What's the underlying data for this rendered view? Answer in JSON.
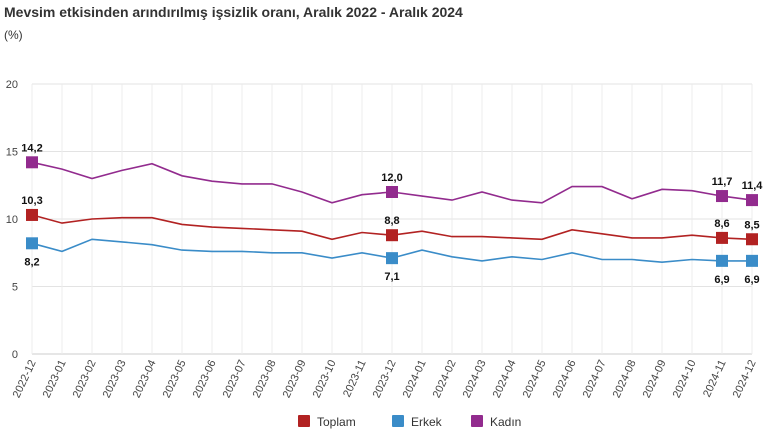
{
  "header": {
    "title": "Mevsim etkisinden arındırılmış işsizlik oranı, Aralık 2022 - Aralık 2024",
    "unit": "(%)"
  },
  "chart_data": {
    "type": "line",
    "title": "Mevsim etkisinden arındırılmış işsizlik oranı, Aralık 2022 - Aralık 2024",
    "ylabel": "(%)",
    "xlabel": "",
    "ylim": [
      0,
      20
    ],
    "yticks": [
      0,
      5,
      10,
      15,
      20
    ],
    "grid": true,
    "legend_position": "bottom",
    "x": [
      "2022-12",
      "2023-01",
      "2023-02",
      "2023-03",
      "2023-04",
      "2023-05",
      "2023-06",
      "2023-07",
      "2023-08",
      "2023-09",
      "2023-10",
      "2023-11",
      "2023-12",
      "2024-01",
      "2024-02",
      "2024-03",
      "2024-04",
      "2024-05",
      "2024-06",
      "2024-07",
      "2024-08",
      "2024-09",
      "2024-10",
      "2024-11",
      "2024-12"
    ],
    "series": [
      {
        "name": "Toplam",
        "color": "#b22222",
        "values": [
          10.3,
          9.7,
          10.0,
          10.1,
          10.1,
          9.6,
          9.4,
          9.3,
          9.2,
          9.1,
          8.5,
          9.0,
          8.8,
          9.1,
          8.7,
          8.7,
          8.6,
          8.5,
          9.2,
          8.9,
          8.6,
          8.6,
          8.8,
          8.6,
          8.5
        ],
        "labels": [
          {
            "i": 0,
            "text": "10,3"
          },
          {
            "i": 12,
            "text": "8,8"
          },
          {
            "i": 23,
            "text": "8,6"
          },
          {
            "i": 24,
            "text": "8,5"
          }
        ]
      },
      {
        "name": "Erkek",
        "color": "#3a8cc8",
        "values": [
          8.2,
          7.6,
          8.5,
          8.3,
          8.1,
          7.7,
          7.6,
          7.6,
          7.5,
          7.5,
          7.1,
          7.5,
          7.1,
          7.7,
          7.2,
          6.9,
          7.2,
          7.0,
          7.5,
          7.0,
          7.0,
          6.8,
          7.0,
          6.9,
          6.9
        ],
        "labels": [
          {
            "i": 0,
            "text": "8,2"
          },
          {
            "i": 12,
            "text": "7,1"
          },
          {
            "i": 23,
            "text": "6,9"
          },
          {
            "i": 24,
            "text": "6,9"
          }
        ]
      },
      {
        "name": "Kadın",
        "color": "#922b8e",
        "values": [
          14.2,
          13.7,
          13.0,
          13.6,
          14.1,
          13.2,
          12.8,
          12.6,
          12.6,
          12.0,
          11.2,
          11.8,
          12.0,
          11.7,
          11.4,
          12.0,
          11.4,
          11.2,
          12.4,
          12.4,
          11.5,
          12.2,
          12.1,
          11.7,
          11.4
        ],
        "labels": [
          {
            "i": 0,
            "text": "14,2"
          },
          {
            "i": 12,
            "text": "12,0"
          },
          {
            "i": 23,
            "text": "11,7"
          },
          {
            "i": 24,
            "text": "11,4"
          }
        ]
      }
    ]
  }
}
